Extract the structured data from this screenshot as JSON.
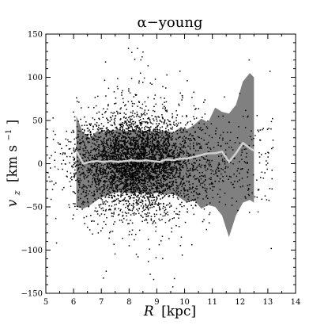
{
  "chart_data": {
    "type": "scatter",
    "title": "α−young",
    "xlabel_var": "R",
    "xlabel_unit": "[kpc]",
    "ylabel_var": "v",
    "ylabel_sub": "z",
    "ylabel_unit_main": "[km s",
    "ylabel_unit_exp": "−1",
    "ylabel_unit_close": "]",
    "xlim": [
      5,
      14
    ],
    "ylim": [
      -150,
      150
    ],
    "xticks": [
      5,
      6,
      7,
      8,
      9,
      10,
      11,
      12,
      13,
      14
    ],
    "yticks": [
      -150,
      -100,
      -50,
      0,
      50,
      100,
      150
    ],
    "grid": false,
    "legend": "none",
    "colors": {
      "points": "#000000",
      "band": "#808080",
      "median_line": "#d0d0d0"
    },
    "band_x": [
      6.1,
      6.35,
      6.6,
      6.85,
      7.1,
      7.35,
      7.6,
      7.85,
      8.1,
      8.35,
      8.6,
      8.85,
      9.1,
      9.35,
      9.6,
      9.85,
      10.1,
      10.35,
      10.6,
      10.85,
      11.1,
      11.35,
      11.6,
      11.85,
      12.1,
      12.35,
      12.5
    ],
    "band_upper": [
      55,
      35,
      30,
      38,
      36,
      38,
      40,
      38,
      38,
      37,
      38,
      38,
      37,
      38,
      36,
      42,
      40,
      45,
      52,
      48,
      65,
      60,
      58,
      68,
      95,
      105,
      100
    ],
    "band_lower": [
      -50,
      -52,
      -48,
      -42,
      -38,
      -35,
      -33,
      -33,
      -35,
      -33,
      -34,
      -35,
      -33,
      -36,
      -35,
      -40,
      -45,
      -42,
      -52,
      -48,
      -50,
      -60,
      -85,
      -60,
      -45,
      -42,
      -45
    ],
    "median_x": [
      6.1,
      6.35,
      6.6,
      6.85,
      7.1,
      7.35,
      7.6,
      7.85,
      8.1,
      8.35,
      8.6,
      8.85,
      9.1,
      9.35,
      9.6,
      9.85,
      10.1,
      10.35,
      10.6,
      10.85,
      11.1,
      11.35,
      11.6,
      11.85,
      12.1,
      12.35,
      12.5
    ],
    "median_y": [
      15,
      0,
      2,
      3,
      2,
      3,
      2,
      3,
      4,
      3,
      4,
      3,
      2,
      5,
      4,
      6,
      6,
      8,
      10,
      12,
      12,
      14,
      2,
      12,
      24,
      18,
      15
    ],
    "scatter_note": "dense cloud centered near R=8, vz=0 (~5000 stars)"
  }
}
